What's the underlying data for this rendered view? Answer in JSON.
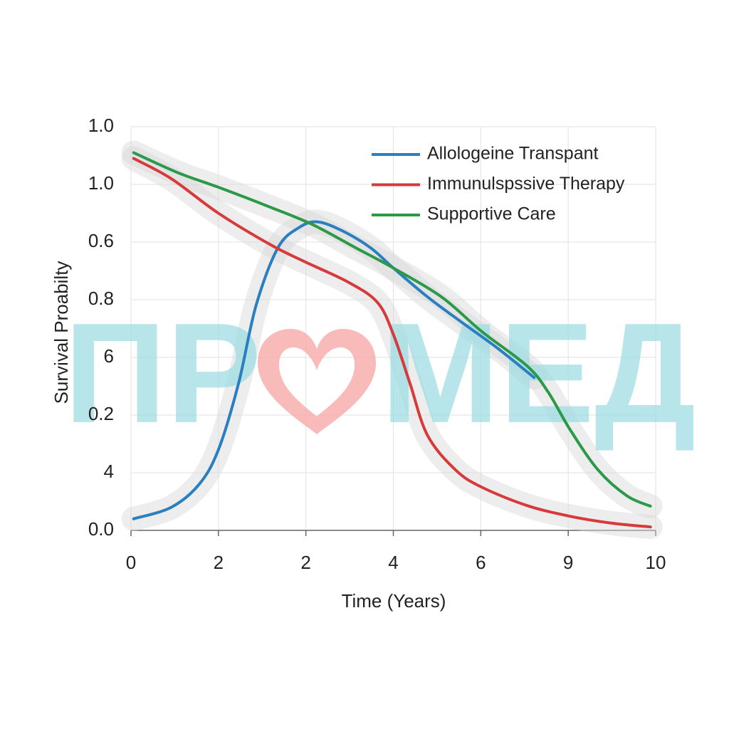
{
  "chart_data": {
    "type": "line",
    "xlabel": "Time (Years)",
    "ylabel": "Survival Proabilty",
    "watermark": [
      "ПР",
      "МЕД"
    ],
    "xlim": [
      0,
      6
    ],
    "xticks": [
      0,
      {
        "value": 1,
        "label": "2"
      },
      2,
      {
        "value": 3,
        "label": "4"
      },
      {
        "value": 4,
        "label": "6"
      },
      {
        "value": 5,
        "label": "9"
      },
      {
        "value": 6,
        "label": "10"
      }
    ],
    "ylim": [
      0,
      1.4
    ],
    "yticks": [
      {
        "value": 0,
        "label": "0.0"
      },
      {
        "value": 0.2,
        "label": "4"
      },
      {
        "value": 0.4,
        "label": "0.2"
      },
      {
        "value": 0.6,
        "label": "6"
      },
      0.8,
      {
        "value": 1.0,
        "label": "0.6"
      },
      {
        "value": 1.2,
        "label": "1.0"
      },
      {
        "value": 1.4,
        "label": "1.0"
      }
    ],
    "grid": true,
    "legend": "upper right",
    "series": [
      {
        "name": "Allologeine Transpant",
        "color": "#2a7fc0",
        "x": [
          0.03,
          0.46,
          0.78,
          1.0,
          1.23,
          1.43,
          1.68,
          1.92,
          2.13,
          2.41,
          2.74,
          3.0,
          3.39,
          3.79,
          4.2,
          4.61
        ],
        "values": [
          0.04,
          0.08,
          0.16,
          0.28,
          0.51,
          0.78,
          0.98,
          1.05,
          1.07,
          1.04,
          0.98,
          0.91,
          0.81,
          0.72,
          0.63,
          0.53
        ]
      },
      {
        "name": "Immunulspssive Therapy",
        "color": "#d63a3a",
        "x": [
          0.03,
          0.46,
          1.0,
          1.6,
          2.0,
          2.49,
          2.82,
          3.0,
          3.19,
          3.39,
          3.71,
          4.01,
          4.53,
          5.02,
          5.5,
          5.94
        ],
        "values": [
          1.29,
          1.22,
          1.1,
          0.99,
          0.93,
          0.86,
          0.79,
          0.68,
          0.51,
          0.33,
          0.21,
          0.15,
          0.086,
          0.049,
          0.025,
          0.012
        ]
      },
      {
        "name": "Supportive Care",
        "color": "#2a9a48",
        "x": [
          0.03,
          0.54,
          1.0,
          1.6,
          2.08,
          2.57,
          3.0,
          3.55,
          4.01,
          4.53,
          4.77,
          5.02,
          5.34,
          5.67,
          5.94
        ],
        "values": [
          1.31,
          1.24,
          1.19,
          1.12,
          1.06,
          0.98,
          0.91,
          0.81,
          0.69,
          0.57,
          0.48,
          0.35,
          0.21,
          0.12,
          0.084
        ]
      }
    ]
  }
}
